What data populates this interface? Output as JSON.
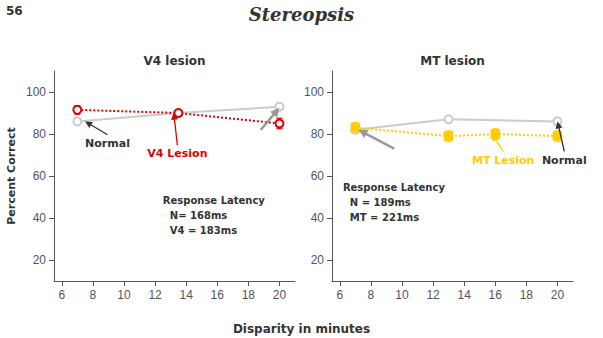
{
  "chart_data": {
    "type": "line",
    "title": "Stereopsis",
    "xlabel": "Disparity in minutes",
    "ylabel": "Percent Correct",
    "annotations": [
      {
        "text": "56"
      }
    ],
    "panels": [
      {
        "title": "V4 lesion",
        "xlim": [
          5.5,
          21
        ],
        "ylim": [
          10,
          110
        ],
        "xticks": [
          6,
          8,
          10,
          12,
          14,
          16,
          18,
          20
        ],
        "yticks": [
          20,
          40,
          60,
          80,
          100
        ],
        "grid": false,
        "series": [
          {
            "color": "#cccccc",
            "line_style": "solid",
            "marker": "circle",
            "x": [
              7,
              13.5,
              20
            ],
            "values": [
              86,
              90,
              93
            ],
            "yerr": [
              1.5,
              1.5,
              1.5
            ]
          },
          {
            "color": "#dd0000",
            "line_style": "dotted",
            "marker": "circle",
            "x": [
              7,
              13.5,
              20
            ],
            "values": [
              91.5,
              90,
              85
            ],
            "yerr": [
              2.0,
              1.5,
              2.5
            ]
          }
        ],
        "annotations": [
          {
            "text": "Normal",
            "x": 7.5,
            "y": 86,
            "text_x": 7.5,
            "text_y": 73
          },
          {
            "text": "V4 Lesion",
            "x": 13.2,
            "y": 90.2,
            "text_x": 11.5,
            "text_y": 68,
            "color": "#dd0000"
          },
          {
            "x": 20,
            "y": 92.5,
            "text_x": 18.8,
            "text_y": 82,
            "color": "#999999"
          },
          {
            "text": "Response Latency\n  N= 168ms\n  V4 = 183ms",
            "x": 12.5,
            "y": 52
          }
        ]
      },
      {
        "title": "MT lesion",
        "xlim": [
          5.5,
          21
        ],
        "ylim": [
          10,
          110
        ],
        "xticks": [
          6,
          8,
          10,
          12,
          14,
          16,
          18,
          20
        ],
        "yticks": [
          20,
          40,
          60,
          80,
          100
        ],
        "grid": false,
        "series": [
          {
            "color": "#cccccc",
            "line_style": "solid",
            "marker": "circle",
            "x": [
              7,
              13,
              20
            ],
            "values": [
              82,
              87,
              86
            ],
            "yerr": [
              1.5,
              1.5,
              1.5
            ]
          },
          {
            "color": "#ffcc00",
            "line_style": "dotted",
            "marker": "square",
            "x": [
              7,
              13,
              16,
              20
            ],
            "values": [
              83,
              79,
              80,
              79
            ],
            "yerr": [
              2.5,
              2.5,
              2.5,
              2.5
            ]
          }
        ],
        "annotations": [
          {
            "x": 7.2,
            "y": 82,
            "text_x": 9.5,
            "text_y": 73,
            "color": "#999999"
          },
          {
            "text": "MT Lesion",
            "x": 15.8,
            "y": 80,
            "text_x": 14.5,
            "text_y": 65,
            "color": "#ffcc00"
          },
          {
            "text": "Normal",
            "x": 20,
            "y": 86,
            "text_x": 19.0,
            "text_y": 65
          },
          {
            "text": "Response Latency\n  N = 189ms\n  MT = 221ms",
            "x": 6.2,
            "y": 58
          }
        ]
      }
    ]
  }
}
